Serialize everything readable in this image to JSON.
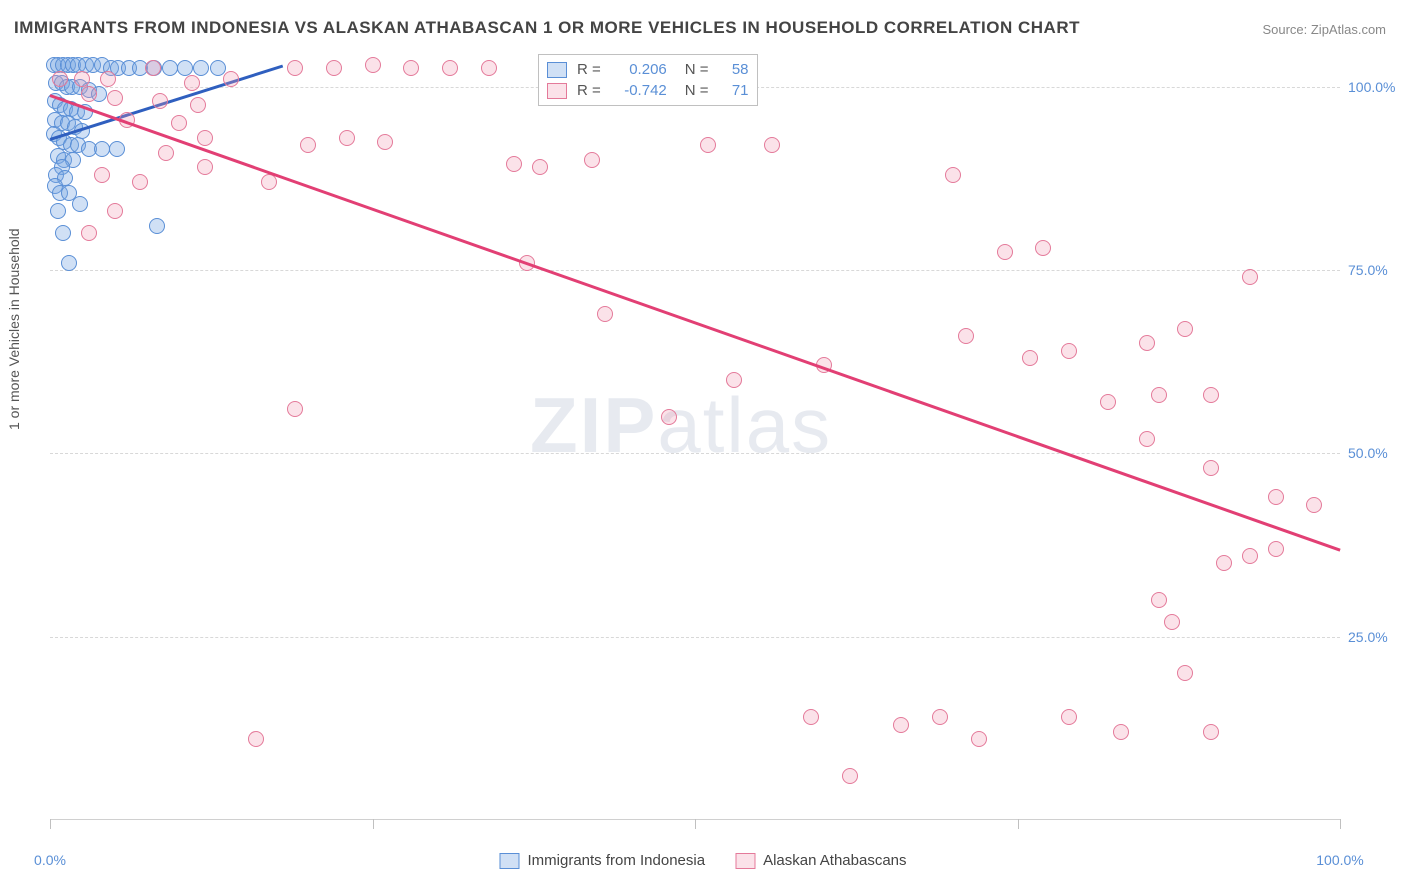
{
  "title": "IMMIGRANTS FROM INDONESIA VS ALASKAN ATHABASCAN 1 OR MORE VEHICLES IN HOUSEHOLD CORRELATION CHART",
  "source_label": "Source: ZipAtlas.com",
  "y_axis_label": "1 or more Vehicles in Household",
  "watermark_bold": "ZIP",
  "watermark_rest": "atlas",
  "chart": {
    "type": "scatter",
    "xlim": [
      0,
      100
    ],
    "ylim": [
      0,
      105
    ],
    "y_gridlines": [
      25,
      50,
      75,
      100
    ],
    "y_tick_labels": [
      "25.0%",
      "50.0%",
      "75.0%",
      "100.0%"
    ],
    "x_ticks": [
      0,
      25,
      50,
      75,
      100
    ],
    "x_tick_labels_shown": {
      "0": "0.0%",
      "100": "100.0%"
    },
    "grid_color": "#d8d8d8",
    "axis_color": "#d0d0d0",
    "tick_label_color": "#5a8fd6",
    "tick_fontsize": 14,
    "background_color": "#ffffff",
    "label_fontsize": 14,
    "title_fontsize": 17,
    "title_color": "#444444",
    "point_radius": 8,
    "point_border_width": 1.2,
    "trend_line_width": 2.5
  },
  "series": [
    {
      "key": "indonesia",
      "label": "Immigrants from Indonesia",
      "fill_color": "rgba(120,165,225,0.35)",
      "stroke_color": "#5a8fd6",
      "trend_color": "#2f5fbf",
      "R": "0.206",
      "N": "58",
      "trend": {
        "x1": 0,
        "y1": 93,
        "x2": 18,
        "y2": 103
      },
      "points": [
        [
          0.3,
          103
        ],
        [
          0.6,
          103
        ],
        [
          1.0,
          103
        ],
        [
          1.4,
          103
        ],
        [
          1.8,
          103
        ],
        [
          2.2,
          103
        ],
        [
          2.8,
          103
        ],
        [
          3.3,
          103
        ],
        [
          4.0,
          103
        ],
        [
          4.7,
          102.5
        ],
        [
          5.3,
          102.5
        ],
        [
          6.1,
          102.5
        ],
        [
          7.0,
          102.5
        ],
        [
          8.1,
          102.5
        ],
        [
          9.3,
          102.5
        ],
        [
          10.5,
          102.5
        ],
        [
          11.7,
          102.5
        ],
        [
          13.0,
          102.5
        ],
        [
          0.5,
          100.5
        ],
        [
          0.9,
          100.5
        ],
        [
          1.3,
          100
        ],
        [
          1.7,
          100
        ],
        [
          2.3,
          100
        ],
        [
          3.0,
          99.5
        ],
        [
          3.8,
          99
        ],
        [
          0.4,
          98
        ],
        [
          0.8,
          97.5
        ],
        [
          1.2,
          97
        ],
        [
          1.6,
          97
        ],
        [
          2.1,
          96.5
        ],
        [
          2.7,
          96.5
        ],
        [
          0.4,
          95.5
        ],
        [
          0.9,
          95
        ],
        [
          1.4,
          95
        ],
        [
          1.9,
          94.5
        ],
        [
          2.5,
          94
        ],
        [
          0.3,
          93.5
        ],
        [
          0.7,
          93
        ],
        [
          1.1,
          92.5
        ],
        [
          1.6,
          92
        ],
        [
          2.2,
          92
        ],
        [
          3.0,
          91.5
        ],
        [
          4.0,
          91.5
        ],
        [
          5.2,
          91.5
        ],
        [
          0.6,
          90.5
        ],
        [
          1.1,
          90
        ],
        [
          1.8,
          90
        ],
        [
          0.9,
          89
        ],
        [
          0.5,
          88
        ],
        [
          1.2,
          87.5
        ],
        [
          0.4,
          86.5
        ],
        [
          0.8,
          85.5
        ],
        [
          1.5,
          85.5
        ],
        [
          2.3,
          84
        ],
        [
          0.6,
          83
        ],
        [
          8.3,
          81
        ],
        [
          1.0,
          80
        ],
        [
          1.5,
          76
        ]
      ]
    },
    {
      "key": "athabascan",
      "label": "Alaskan Athabascans",
      "fill_color": "rgba(240,150,175,0.28)",
      "stroke_color": "#e47a9a",
      "trend_color": "#e23f74",
      "R": "-0.742",
      "N": "71",
      "trend": {
        "x1": 0,
        "y1": 99,
        "x2": 100,
        "y2": 37
      },
      "points": [
        [
          0.8,
          101
        ],
        [
          2.5,
          101
        ],
        [
          4.5,
          101
        ],
        [
          8,
          102.5
        ],
        [
          11,
          100.5
        ],
        [
          14,
          101
        ],
        [
          19,
          102.5
        ],
        [
          22,
          102.5
        ],
        [
          25,
          103
        ],
        [
          28,
          102.5
        ],
        [
          31,
          102.5
        ],
        [
          34,
          102.5
        ],
        [
          3,
          99
        ],
        [
          5,
          98.5
        ],
        [
          8.5,
          98
        ],
        [
          11.5,
          97.5
        ],
        [
          6,
          95.5
        ],
        [
          10,
          95
        ],
        [
          12,
          93
        ],
        [
          20,
          92
        ],
        [
          23,
          93
        ],
        [
          26,
          92.5
        ],
        [
          36,
          89.5
        ],
        [
          38,
          89
        ],
        [
          42,
          90
        ],
        [
          51,
          92
        ],
        [
          56,
          92
        ],
        [
          4,
          88
        ],
        [
          7,
          87
        ],
        [
          9,
          91
        ],
        [
          12,
          89
        ],
        [
          17,
          87
        ],
        [
          5,
          83
        ],
        [
          3,
          80
        ],
        [
          37,
          76
        ],
        [
          43,
          69
        ],
        [
          53,
          60
        ],
        [
          19,
          56
        ],
        [
          70,
          88
        ],
        [
          74,
          77.5
        ],
        [
          77,
          78
        ],
        [
          71,
          66
        ],
        [
          76,
          63
        ],
        [
          79,
          64
        ],
        [
          85,
          65
        ],
        [
          88,
          67
        ],
        [
          82,
          57
        ],
        [
          86,
          58
        ],
        [
          90,
          58
        ],
        [
          93,
          74
        ],
        [
          85,
          52
        ],
        [
          90,
          48
        ],
        [
          95,
          44
        ],
        [
          98,
          43
        ],
        [
          59,
          14
        ],
        [
          62,
          6
        ],
        [
          66,
          13
        ],
        [
          69,
          14
        ],
        [
          72,
          11
        ],
        [
          79,
          14
        ],
        [
          83,
          12
        ],
        [
          86,
          30
        ],
        [
          87,
          27
        ],
        [
          91,
          35
        ],
        [
          93,
          36
        ],
        [
          95,
          37
        ],
        [
          88,
          20
        ],
        [
          90,
          12
        ],
        [
          16,
          11
        ],
        [
          48,
          55
        ],
        [
          60,
          62
        ]
      ]
    }
  ],
  "legend_top": {
    "R_label": "R =",
    "N_label": "N ="
  },
  "legend_bottom_labels": [
    "Immigrants from Indonesia",
    "Alaskan Athabascans"
  ]
}
